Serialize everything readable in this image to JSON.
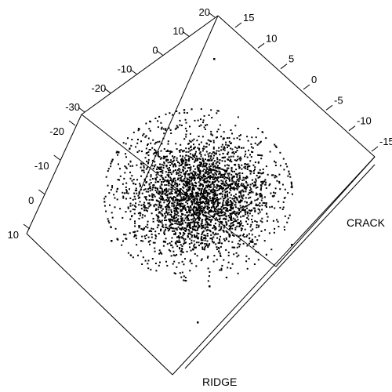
{
  "chart_data": {
    "type": "scatter",
    "projection": "3d",
    "point_count": 3000,
    "axes": {
      "top_left": {
        "label": "",
        "ticks": [
          "20",
          "10",
          "0",
          "-10",
          "-20",
          "-30"
        ],
        "range": [
          -35,
          20
        ]
      },
      "top_right": {
        "label": "CRACK",
        "ticks": [
          "15",
          "10",
          "5",
          "0",
          "-5",
          "-10",
          "-15"
        ],
        "range": [
          -15,
          15
        ]
      },
      "left": {
        "label": "RIDGE",
        "ticks": [
          "-20",
          "-10",
          "0",
          "10"
        ],
        "range": [
          -25,
          10
        ]
      }
    },
    "cluster": {
      "center": [
        0,
        0,
        0
      ],
      "spread": "roughly isotropic normal"
    },
    "grid": false,
    "legend": "none"
  }
}
